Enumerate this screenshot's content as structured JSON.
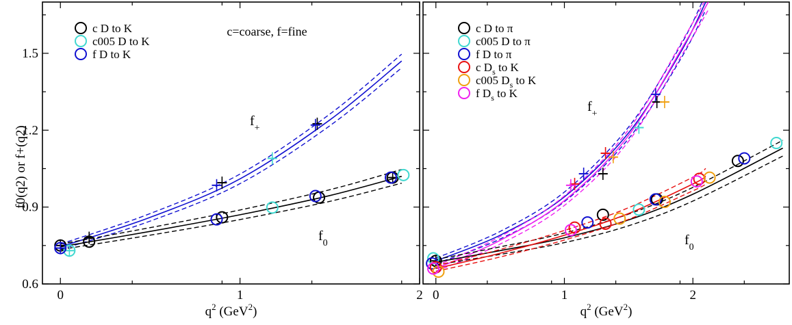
{
  "ylabel": "f0(q2) or f+(q2)",
  "colors": {
    "black": "#000000",
    "cyan": "#40d8d0",
    "blue": "#1010d0",
    "red": "#e81010",
    "orange": "#f0a010",
    "magenta": "#f020f0"
  },
  "chart_data": [
    {
      "type": "scatter",
      "xlabel": "q2 (GeV2)",
      "xlim": [
        -0.1,
        2.0
      ],
      "ylim": [
        0.6,
        1.7
      ],
      "xticks": [
        0,
        1,
        2
      ],
      "yticks": [
        0.6,
        0.9,
        1.2,
        1.5
      ],
      "ytick_labels": [
        "0.6",
        "0.9",
        "1.2",
        "1.5"
      ],
      "annotations": {
        "note": "c=coarse, f=fine",
        "f_plus_label": "f",
        "f_plus_sub": "+",
        "f_zero_label": "f",
        "f_zero_sub": "0"
      },
      "legend": [
        {
          "label": "c D to K",
          "color": "black"
        },
        {
          "label": "c005 D to K",
          "color": "cyan"
        },
        {
          "label": "f D to K",
          "color": "blue"
        }
      ],
      "series": [
        {
          "name": "c D to K",
          "color": "black",
          "f0": [
            [
              0.0,
              0.75
            ],
            [
              0.16,
              0.765
            ],
            [
              0.9,
              0.86
            ],
            [
              1.44,
              0.937
            ],
            [
              1.85,
              1.015
            ]
          ],
          "fplus": [
            [
              0.0,
              0.75
            ],
            [
              0.16,
              0.78
            ],
            [
              0.9,
              0.995
            ],
            [
              1.43,
              1.225
            ],
            [
              1.85,
              1.015
            ]
          ]
        },
        {
          "name": "c005 D to K",
          "color": "cyan",
          "f0": [
            [
              0.05,
              0.73
            ],
            [
              1.18,
              0.898
            ],
            [
              1.91,
              1.025
            ]
          ],
          "fplus": [
            [
              0.05,
              0.73
            ],
            [
              1.18,
              1.09
            ]
          ]
        },
        {
          "name": "f D to K",
          "color": "blue",
          "f0": [
            [
              0.0,
              0.74
            ],
            [
              0.87,
              0.852
            ],
            [
              1.42,
              0.943
            ],
            [
              1.84,
              1.015
            ]
          ],
          "fplus": [
            [
              0.0,
              0.74
            ],
            [
              0.87,
              0.985
            ],
            [
              1.42,
              1.22
            ]
          ]
        }
      ],
      "fit_bands": [
        {
          "color": "blue",
          "points": [
            [
              0.0,
              0.745
            ],
            [
              0.5,
              0.86
            ],
            [
              1.0,
              1.01
            ],
            [
              1.5,
              1.24
            ],
            [
              1.9,
              1.47
            ]
          ]
        },
        {
          "color": "black",
          "points": [
            [
              0.0,
              0.745
            ],
            [
              0.5,
              0.805
            ],
            [
              1.0,
              0.87
            ],
            [
              1.5,
              0.945
            ],
            [
              1.9,
              1.02
            ]
          ]
        }
      ]
    },
    {
      "type": "scatter",
      "xlabel": "q2 (GeV2)",
      "xlim": [
        -0.1,
        2.75
      ],
      "ylim": [
        0.6,
        1.7
      ],
      "xticks": [
        0,
        1,
        2
      ],
      "yticks": [
        0.6,
        0.9,
        1.2,
        1.5
      ],
      "annotations": {
        "f_plus_label": "f",
        "f_plus_sub": "+",
        "f_zero_label": "f",
        "f_zero_sub": "0"
      },
      "legend": [
        {
          "label": "c D to π",
          "color": "black"
        },
        {
          "label": "c005 D to π",
          "color": "cyan"
        },
        {
          "label": "f D to π",
          "color": "blue"
        },
        {
          "label": "c D",
          "sub": "s",
          "after": " to K",
          "color": "red"
        },
        {
          "label": "c005 D",
          "sub": "s",
          "after": " to K",
          "color": "orange"
        },
        {
          "label": "f D",
          "sub": "s",
          "after": " to K",
          "color": "magenta"
        }
      ],
      "series": [
        {
          "name": "c D to π",
          "color": "black",
          "f0": [
            [
              0.0,
              0.69
            ],
            [
              1.3,
              0.87
            ],
            [
              1.72,
              0.93
            ],
            [
              2.35,
              1.08
            ]
          ],
          "fplus": [
            [
              0.0,
              0.69
            ],
            [
              1.3,
              1.03
            ],
            [
              1.72,
              1.31
            ]
          ]
        },
        {
          "name": "c005 D to π",
          "color": "cyan",
          "f0": [
            [
              -0.02,
              0.7
            ],
            [
              1.58,
              0.89
            ],
            [
              2.65,
              1.15
            ]
          ],
          "fplus": [
            [
              1.58,
              1.21
            ]
          ]
        },
        {
          "name": "f D to π",
          "color": "blue",
          "f0": [
            [
              -0.03,
              0.68
            ],
            [
              1.18,
              0.84
            ],
            [
              1.71,
              0.93
            ],
            [
              2.4,
              1.09
            ]
          ],
          "fplus": [
            [
              1.15,
              1.03
            ],
            [
              1.71,
              1.34
            ]
          ]
        },
        {
          "name": "c Ds to K",
          "color": "red",
          "f0": [
            [
              0.0,
              0.665
            ],
            [
              1.08,
              0.82
            ],
            [
              1.32,
              0.835
            ],
            [
              2.05,
              1.01
            ]
          ],
          "fplus": [
            [
              1.08,
              0.99
            ],
            [
              1.32,
              1.11
            ]
          ]
        },
        {
          "name": "c005 Ds to K",
          "color": "orange",
          "f0": [
            [
              0.02,
              0.648
            ],
            [
              1.43,
              0.855
            ],
            [
              1.78,
              0.92
            ],
            [
              2.13,
              1.015
            ]
          ],
          "fplus": [
            [
              1.38,
              1.095
            ],
            [
              1.78,
              1.31
            ]
          ]
        },
        {
          "name": "f Ds to K",
          "color": "magenta",
          "f0": [
            [
              -0.02,
              0.66
            ],
            [
              1.05,
              0.81
            ],
            [
              2.03,
              1.0
            ]
          ],
          "fplus": [
            [
              1.05,
              0.985
            ]
          ]
        }
      ],
      "fit_bands": [
        {
          "color": "blue",
          "points": [
            [
              0.0,
              0.69
            ],
            [
              0.5,
              0.79
            ],
            [
              1.0,
              0.94
            ],
            [
              1.5,
              1.19
            ],
            [
              1.9,
              1.5
            ],
            [
              2.1,
              1.7
            ]
          ]
        },
        {
          "color": "magenta",
          "points": [
            [
              0.0,
              0.66
            ],
            [
              0.5,
              0.77
            ],
            [
              1.0,
              0.925
            ],
            [
              1.5,
              1.18
            ],
            [
              1.95,
              1.55
            ],
            [
              2.12,
              1.7
            ]
          ]
        },
        {
          "color": "black",
          "points": [
            [
              0.0,
              0.685
            ],
            [
              0.5,
              0.73
            ],
            [
              1.0,
              0.78
            ],
            [
              1.5,
              0.85
            ],
            [
              2.0,
              0.95
            ],
            [
              2.7,
              1.13
            ]
          ]
        },
        {
          "color": "red",
          "points": [
            [
              0.0,
              0.66
            ],
            [
              0.5,
              0.72
            ],
            [
              1.0,
              0.79
            ],
            [
              1.5,
              0.875
            ],
            [
              2.0,
              0.99
            ],
            [
              2.1,
              1.02
            ]
          ]
        }
      ]
    }
  ]
}
